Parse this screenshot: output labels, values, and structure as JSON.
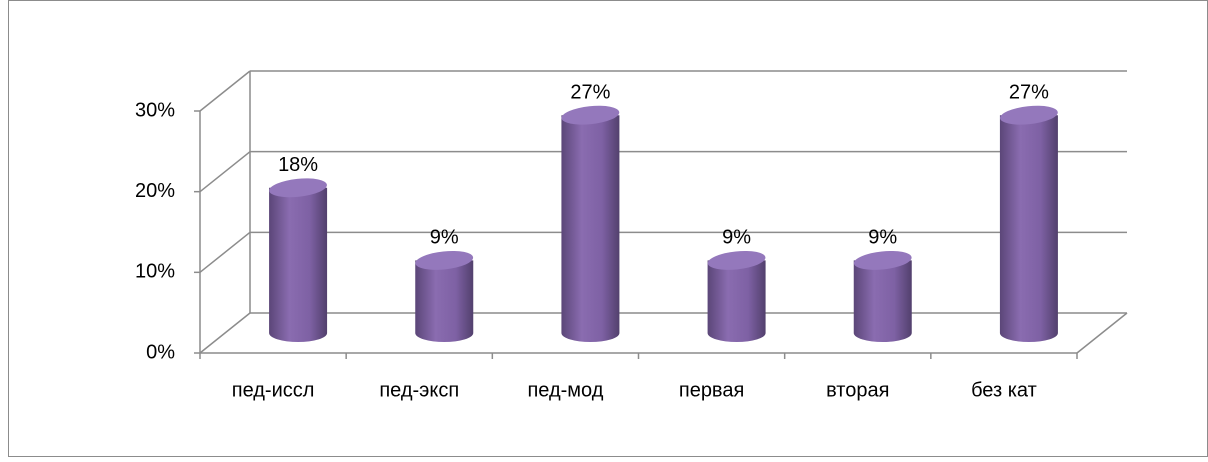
{
  "chart_data": {
    "type": "bar3d",
    "categories": [
      "пед-иссл",
      "пед-эксп",
      "пед-мод",
      "первая",
      "вторая",
      "без кат"
    ],
    "values": [
      18,
      9,
      27,
      9,
      9,
      27
    ],
    "value_labels": [
      "18%",
      "9%",
      "27%",
      "9%",
      "9%",
      "27%"
    ],
    "color": "#8064a2",
    "ylim": [
      0,
      30
    ],
    "yticks": [
      {
        "value": 0,
        "label": "0%"
      },
      {
        "value": 10,
        "label": "10%"
      },
      {
        "value": 20,
        "label": "20%"
      },
      {
        "value": 30,
        "label": "30%"
      }
    ],
    "grid": true
  }
}
